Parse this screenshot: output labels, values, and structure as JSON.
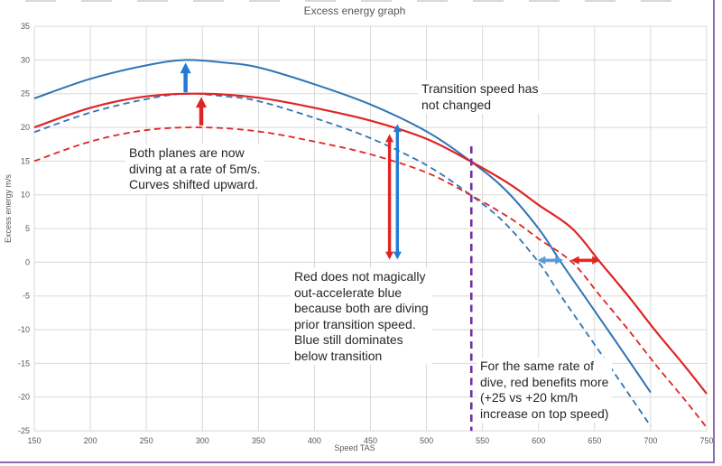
{
  "title": "Excess energy graph",
  "annotations": {
    "both_planes": "Both planes are now\ndiving at a rate of 5m/s.\nCurves shifted upward.",
    "transition": "Transition speed has\nnot changed",
    "red_magic": "Red does not magically\nout-accelerate blue\nbecause both are diving\nprior transition speed.\nBlue still dominates\nbelow transition",
    "same_rate": "For the same rate of\ndive, red benefits more\n(+25 vs +20 km/h\nincrease on top speed)"
  },
  "colors": {
    "blue_curve": "#2e75b6",
    "red_curve": "#e02424",
    "arrow_blue": "#217bd4",
    "arrow_blue_light": "#5b9bd5",
    "arrow_red": "#e02424",
    "transition_purple": "#7030a0",
    "grid": "#d9d9d9",
    "tick_text": "#595959",
    "annotation_text": "#262626",
    "window_border": "#8e6bad"
  },
  "chart_data": {
    "type": "line",
    "title": "Excess energy graph",
    "xlabel": "Speed TAS",
    "ylabel": "Excess energy m/s",
    "xlim": [
      150,
      750
    ],
    "ylim": [
      -25,
      35
    ],
    "grid": true,
    "legend": "none",
    "x_ticks": [
      150,
      200,
      250,
      300,
      350,
      400,
      450,
      500,
      550,
      600,
      650,
      700,
      750
    ],
    "y_ticks": [
      -25,
      -20,
      -15,
      -10,
      -5,
      0,
      5,
      10,
      15,
      20,
      25,
      30,
      35
    ],
    "series": [
      {
        "id": "blue-original-dashed",
        "color": "#2e75b6",
        "style": "dashed",
        "width": 1.8,
        "points": [
          [
            150,
            19.3
          ],
          [
            200,
            22.2
          ],
          [
            250,
            24.2
          ],
          [
            285,
            25
          ],
          [
            320,
            24.6
          ],
          [
            350,
            23.9
          ],
          [
            400,
            21.4
          ],
          [
            450,
            18.4
          ],
          [
            500,
            14.4
          ],
          [
            540,
            9.9
          ],
          [
            570,
            5.8
          ],
          [
            600,
            0
          ],
          [
            620,
            -5
          ],
          [
            645,
            -11
          ],
          [
            670,
            -17
          ],
          [
            700,
            -24.3
          ]
        ]
      },
      {
        "id": "blue-diving-solid",
        "color": "#2e75b6",
        "style": "solid",
        "width": 2,
        "points": [
          [
            150,
            24.3
          ],
          [
            200,
            27.2
          ],
          [
            250,
            29.2
          ],
          [
            285,
            30
          ],
          [
            320,
            29.6
          ],
          [
            350,
            28.9
          ],
          [
            400,
            26.4
          ],
          [
            450,
            23.4
          ],
          [
            500,
            19.4
          ],
          [
            540,
            14.9
          ],
          [
            570,
            10.8
          ],
          [
            600,
            5
          ],
          [
            620,
            0
          ],
          [
            645,
            -6
          ],
          [
            670,
            -12
          ],
          [
            700,
            -19.3
          ]
        ]
      },
      {
        "id": "red-original-dashed",
        "color": "#e02424",
        "style": "dashed",
        "width": 1.8,
        "points": [
          [
            150,
            15
          ],
          [
            200,
            17.9
          ],
          [
            250,
            19.6
          ],
          [
            300,
            20
          ],
          [
            350,
            19.4
          ],
          [
            400,
            17.9
          ],
          [
            450,
            16
          ],
          [
            500,
            13.3
          ],
          [
            540,
            9.9
          ],
          [
            575,
            6.5
          ],
          [
            600,
            3.5
          ],
          [
            630,
            0
          ],
          [
            655,
            -5
          ],
          [
            680,
            -10
          ],
          [
            705,
            -15.3
          ],
          [
            730,
            -20.3
          ],
          [
            750,
            -24.5
          ]
        ]
      },
      {
        "id": "red-diving-solid",
        "color": "#e02424",
        "style": "solid",
        "width": 2.2,
        "points": [
          [
            150,
            20
          ],
          [
            200,
            22.9
          ],
          [
            250,
            24.6
          ],
          [
            300,
            25
          ],
          [
            350,
            24.4
          ],
          [
            400,
            22.9
          ],
          [
            450,
            21
          ],
          [
            500,
            18.3
          ],
          [
            540,
            14.9
          ],
          [
            575,
            11.5
          ],
          [
            600,
            8.5
          ],
          [
            630,
            5
          ],
          [
            655,
            0
          ],
          [
            680,
            -5
          ],
          [
            705,
            -10.3
          ],
          [
            730,
            -15.3
          ],
          [
            750,
            -19.5
          ]
        ]
      }
    ],
    "transition_line": {
      "x": 540,
      "y_top": 17.2,
      "y_bottom": -25,
      "color": "#7030a0"
    },
    "arrows": [
      {
        "id": "blue-peak-shift",
        "x1": 285,
        "y1": 25.2,
        "x2": 285,
        "y2": 29.6,
        "heads": "end",
        "color": "#217bd4",
        "width": 4.5
      },
      {
        "id": "red-peak-shift",
        "x1": 299,
        "y1": 20.3,
        "x2": 299,
        "y2": 24.5,
        "heads": "end",
        "color": "#e02424",
        "width": 4.5
      },
      {
        "id": "blue-excess-gap",
        "x1": 474,
        "y1": 0.4,
        "x2": 474,
        "y2": 20.5,
        "heads": "both",
        "color": "#217bd4",
        "width": 3.4
      },
      {
        "id": "red-excess-gap",
        "x1": 467,
        "y1": 0.4,
        "x2": 467,
        "y2": 19.0,
        "heads": "both",
        "color": "#e02424",
        "width": 3.4
      },
      {
        "id": "blue-topspeed-gain",
        "x1": 599,
        "y1": 0.3,
        "x2": 622,
        "y2": 0.3,
        "heads": "both",
        "color": "#5b9bd5",
        "width": 3.4
      },
      {
        "id": "red-topspeed-gain",
        "x1": 629,
        "y1": 0.3,
        "x2": 655,
        "y2": 0.3,
        "heads": "both",
        "color": "#e02424",
        "width": 3.4
      }
    ]
  }
}
